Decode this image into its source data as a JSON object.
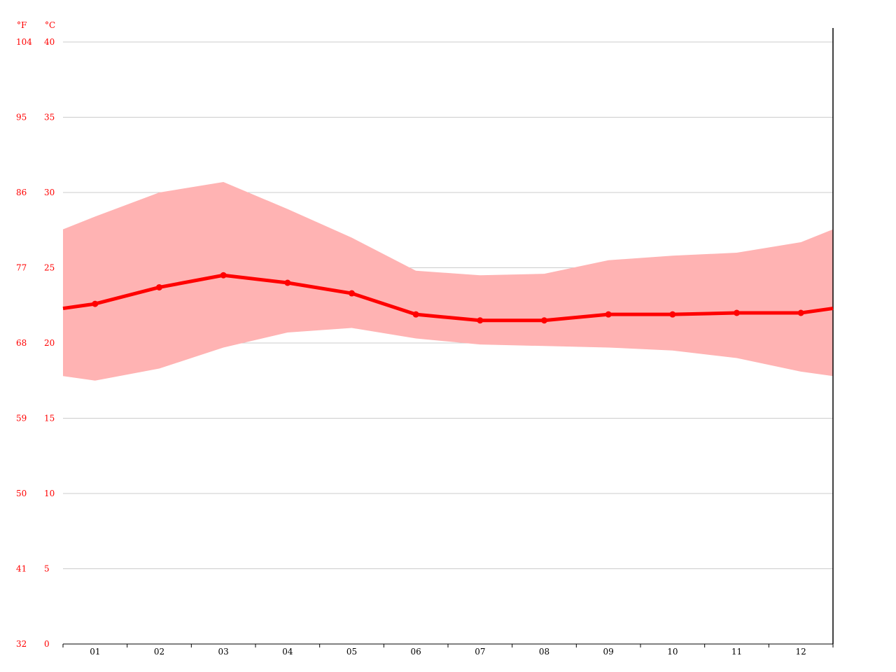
{
  "chart_data": {
    "type": "line",
    "title": "",
    "xlabel": "",
    "ylabel": "",
    "y_units": {
      "fahrenheit": "°F",
      "celsius": "°C"
    },
    "ylim": [
      0,
      40
    ],
    "yticks_c": [
      "0",
      "5",
      "10",
      "15",
      "20",
      "25",
      "30",
      "35",
      "40"
    ],
    "yticks_f": [
      "32",
      "41",
      "50",
      "59",
      "68",
      "77",
      "86",
      "95",
      "104"
    ],
    "categories": [
      "01",
      "02",
      "03",
      "04",
      "05",
      "06",
      "07",
      "08",
      "09",
      "10",
      "11",
      "12"
    ],
    "series": [
      {
        "values": [
          22.6,
          23.7,
          24.5,
          24.0,
          23.3,
          21.9,
          21.5,
          21.5,
          21.9,
          21.9,
          22.0,
          22.0
        ]
      }
    ],
    "range": {
      "max": [
        28.4,
        30.0,
        30.7,
        28.9,
        27.0,
        24.8,
        24.5,
        24.6,
        25.5,
        25.8,
        26.0,
        26.7
      ],
      "min": [
        17.5,
        18.3,
        19.7,
        20.7,
        21.0,
        20.3,
        19.9,
        19.8,
        19.7,
        19.5,
        19.0,
        18.1
      ]
    },
    "grid": true,
    "legend": "none",
    "colors": {
      "line": "#ff0000",
      "band": "#ffb3b3",
      "grid": "#cccccc",
      "axis_text": "#ff0000"
    }
  }
}
